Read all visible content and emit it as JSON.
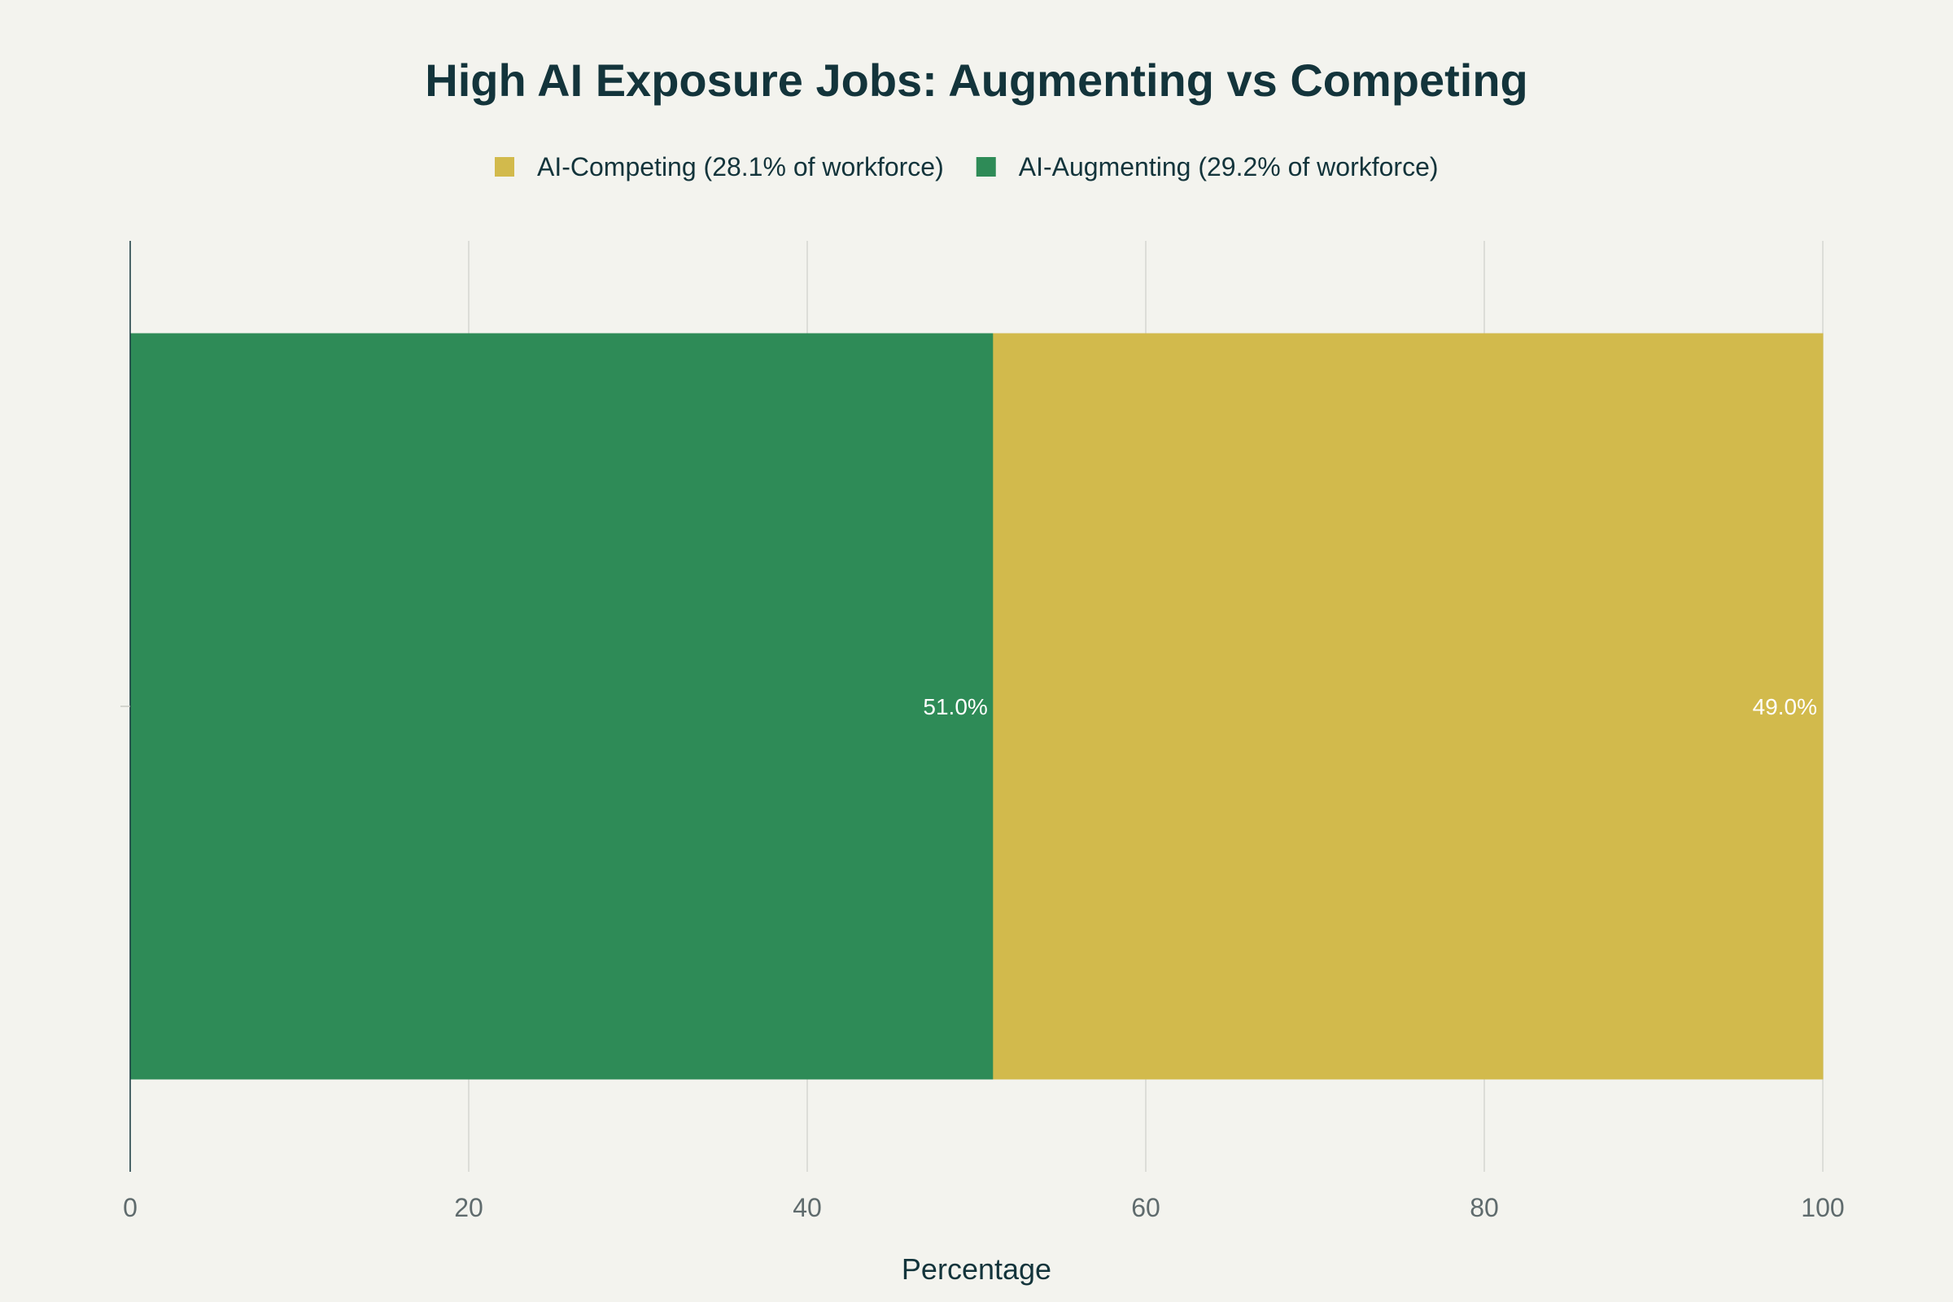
{
  "chart_data": {
    "type": "bar",
    "orientation": "horizontal",
    "stacked": true,
    "title": "High AI Exposure Jobs: Augmenting vs Competing",
    "xlabel": "Percentage",
    "ylabel": "",
    "xlim": [
      0,
      100
    ],
    "x_ticks": [
      0,
      20,
      40,
      60,
      80,
      100
    ],
    "grid": true,
    "legend_position": "top-center",
    "categories": [
      ""
    ],
    "series": [
      {
        "name": "AI-Augmenting (29.2% of workforce)",
        "values": [
          51.0
        ],
        "data_labels": [
          "51.0%"
        ],
        "color": "#2e8b57"
      },
      {
        "name": "AI-Competing (28.1% of workforce)",
        "values": [
          49.0
        ],
        "data_labels": [
          "49.0%"
        ],
        "color": "#d2ba4c"
      }
    ],
    "legend_order": [
      1,
      0
    ]
  }
}
